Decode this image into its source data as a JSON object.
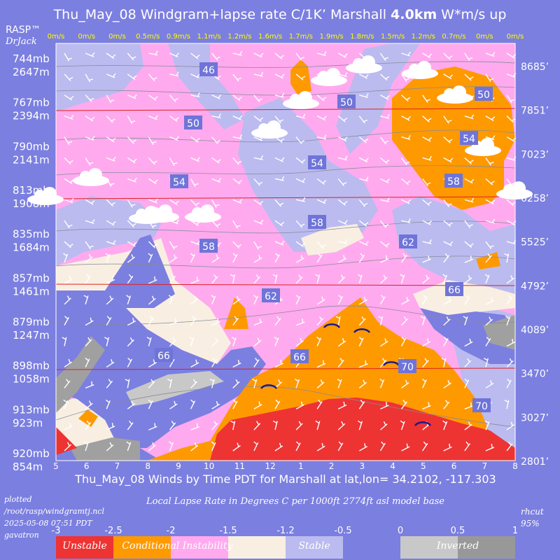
{
  "header": {
    "title_prefix": "Thu_May_08 Windgram+lapse rate C/1K’  Marshall ",
    "title_bold": "4.0km",
    "title_suffix": "  W*m/s up",
    "rasp_label": "RASP™",
    "author": "DrJack"
  },
  "footer": {
    "subtitle": "Thu_May_08 Winds by Time PDT for Marshall at lat,lon= 34.2102, -117.303",
    "plotted_lines": [
      "plotted",
      "/root/rasp/windgramtj.ncl",
      "2025-05-08 07:51 PDT",
      "gavatron"
    ],
    "lapse_title": "Local Lapse Rate in Degrees C per 1000ft  2774ft asl model base",
    "rhcut_label": "rhcut",
    "rhcut_value": "95%"
  },
  "legend": {
    "ticks": [
      "-3",
      "-2.5",
      "-2",
      "-1.5",
      "-1.2",
      "-0.5",
      "0",
      "0.5",
      "1"
    ],
    "colors": [
      "#ee3333",
      "#ff9900",
      "#ffaaee",
      "#f8efe2",
      "#bbbbf0",
      "#7b7fe0",
      "#c8c8c8",
      "#989898"
    ],
    "labels": [
      "Unstable",
      "Conditional Instability",
      "Stable",
      "Inverted"
    ]
  },
  "colors": {
    "background": "#7b7fe0",
    "plot_blue": "#7b7fe0",
    "lavender": "#bbbbf0",
    "pink": "#ffaaee",
    "cream": "#f8efe2",
    "orange": "#ff9900",
    "red": "#ee3333",
    "gray": "#a0a0a0",
    "label_yellow": "#ffff00",
    "contour_label_box": "#6f74d8"
  },
  "chart_data": {
    "type": "heatmap",
    "title": "Thu_May_08 Windgram+lapse rate C/1K’  Marshall 4.0km  W*m/s up",
    "xlabel": "Thu_May_08 Winds by Time PDT for Marshall at lat,lon= 34.2102, -117.303",
    "x_hours": [
      "5",
      "6",
      "7",
      "8",
      "9",
      "10",
      "11",
      "12",
      "1",
      "2",
      "3",
      "4",
      "5",
      "6",
      "7",
      "8"
    ],
    "wstar_labels": [
      "0m/s",
      "0m/s",
      "0m/s",
      "0.5m/s",
      "0.9m/s",
      "1.1m/s",
      "1.2m/s",
      "1.6m/s",
      "1.7m/s",
      "1.9m/s",
      "1.8m/s",
      "1.5m/s",
      "1.2m/s",
      "0.7m/s",
      "0m/s",
      "0m/s"
    ],
    "pressure_levels": [
      {
        "mb": "744mb",
        "m": "2647m",
        "ft": "8685’"
      },
      {
        "mb": "767mb",
        "m": "2394m",
        "ft": "7851’"
      },
      {
        "mb": "790mb",
        "m": "2141m",
        "ft": "7023’"
      },
      {
        "mb": "813mb",
        "m": "1908m",
        "ft": "6258’"
      },
      {
        "mb": "835mb",
        "m": "1684m",
        "ft": "5525’"
      },
      {
        "mb": "857mb",
        "m": "1461m",
        "ft": "4792’"
      },
      {
        "mb": "879mb",
        "m": "1247m",
        "ft": "4089’"
      },
      {
        "mb": "898mb",
        "m": "1058m",
        "ft": "3470’"
      },
      {
        "mb": "913mb",
        "m": "923m",
        "ft": "3027’"
      },
      {
        "mb": "920mb",
        "m": "854m",
        "ft": "2801’"
      }
    ],
    "temperature_contour_labels": [
      "46",
      "50",
      "50",
      "50",
      "54",
      "54",
      "54",
      "58",
      "58",
      "58",
      "62",
      "62",
      "66",
      "66",
      "66",
      "70",
      "70"
    ],
    "lapse_legend_ticks": [
      -3,
      -2.5,
      -2,
      -1.5,
      -1.2,
      -0.5,
      0,
      0.5,
      1
    ],
    "lapse_categories": [
      "Unstable",
      "Conditional Instability",
      "Stable",
      "Inverted"
    ]
  }
}
